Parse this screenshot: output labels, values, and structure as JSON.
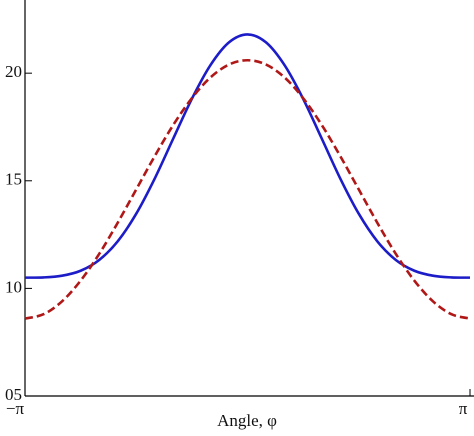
{
  "chart_data": {
    "type": "line",
    "x_label": "Angle, φ",
    "x": [
      -3.1416,
      -2.8798,
      -2.618,
      -2.3562,
      -2.0944,
      -1.8326,
      -1.5708,
      -1.309,
      -1.0472,
      -0.7854,
      -0.5236,
      -0.2618,
      0,
      0.2618,
      0.5236,
      0.7854,
      1.0472,
      1.309,
      1.5708,
      1.8326,
      2.0944,
      2.3562,
      2.618,
      2.8798,
      3.1416
    ],
    "series": [
      {
        "color": "#1c1cc8",
        "style": "solid",
        "values": [
          10.5,
          10.51,
          10.59,
          10.82,
          11.32,
          12.19,
          13.47,
          15.11,
          16.97,
          18.81,
          20.37,
          21.43,
          21.8,
          21.43,
          20.37,
          18.81,
          16.97,
          15.11,
          13.47,
          12.19,
          11.32,
          10.82,
          10.59,
          10.51,
          10.5
        ]
      },
      {
        "color": "#b01818",
        "style": "dashed",
        "values": [
          8.6,
          8.8,
          9.4,
          10.36,
          11.6,
          13.05,
          14.6,
          16.15,
          17.6,
          18.84,
          19.8,
          20.4,
          20.6,
          20.4,
          19.8,
          18.84,
          17.6,
          16.15,
          14.6,
          13.05,
          11.6,
          10.36,
          9.4,
          8.8,
          8.6
        ]
      }
    ],
    "xlim": [
      -3.1416,
      3.1416
    ],
    "xticks": [
      {
        "value": -3.1416,
        "label": "−π"
      },
      {
        "value": 3.1416,
        "label": "π"
      }
    ],
    "ylim": [
      5,
      23.4
    ],
    "yticks": [
      {
        "value": 5,
        "label": "05"
      },
      10,
      15,
      20
    ]
  }
}
